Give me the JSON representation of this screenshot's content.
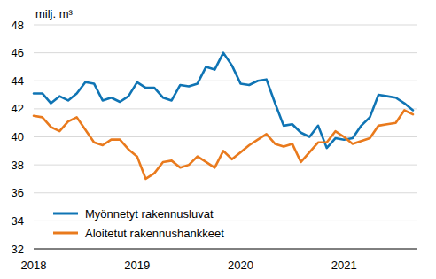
{
  "chart_data": {
    "type": "line",
    "y_label": "milj. m³",
    "categories": [
      "2018",
      null,
      null,
      null,
      null,
      null,
      null,
      null,
      null,
      null,
      null,
      null,
      "2019",
      null,
      null,
      null,
      null,
      null,
      null,
      null,
      null,
      null,
      null,
      null,
      "2020",
      null,
      null,
      null,
      null,
      null,
      null,
      null,
      null,
      null,
      null,
      null,
      "2021",
      null,
      null,
      null,
      null,
      null,
      null,
      null,
      null
    ],
    "series": [
      {
        "name": "Myönnetyt rakennusluvat",
        "color": "#0f74b4",
        "values": [
          43.1,
          43.1,
          42.4,
          42.9,
          42.6,
          43.1,
          43.9,
          43.8,
          42.6,
          42.8,
          42.5,
          42.9,
          43.9,
          43.5,
          43.5,
          42.8,
          42.6,
          43.7,
          43.6,
          43.8,
          45.0,
          44.8,
          46.0,
          45.1,
          43.8,
          43.7,
          44.0,
          44.1,
          42.4,
          40.8,
          40.9,
          40.3,
          40.0,
          40.8,
          39.2,
          39.9,
          39.8,
          39.9,
          40.8,
          41.4,
          43.0,
          42.9,
          42.8,
          42.4,
          41.9
        ]
      },
      {
        "name": "Aloitetut rakennushankkeet",
        "color": "#e97a1d",
        "values": [
          41.5,
          41.4,
          40.7,
          40.4,
          41.1,
          41.4,
          40.5,
          39.6,
          39.4,
          39.8,
          39.8,
          39.1,
          38.6,
          37.0,
          37.4,
          38.2,
          38.3,
          37.8,
          38.0,
          38.6,
          38.2,
          37.8,
          39.0,
          38.4,
          38.9,
          39.4,
          39.8,
          40.2,
          39.5,
          39.3,
          39.5,
          38.2,
          38.9,
          39.6,
          39.6,
          40.4,
          40.0,
          39.5,
          39.7,
          39.9,
          40.8,
          40.9,
          41.0,
          41.9,
          41.6
        ]
      }
    ],
    "ylim": [
      32,
      48
    ],
    "yticks": [
      32,
      34,
      36,
      38,
      40,
      42,
      44,
      46,
      48
    ],
    "grid": true,
    "legend": "lower left"
  }
}
